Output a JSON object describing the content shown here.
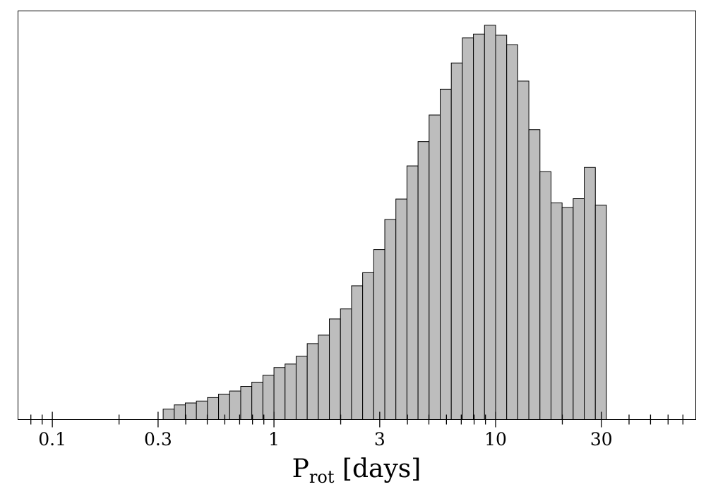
{
  "chart_data": {
    "type": "bar",
    "xscale": "log",
    "xlabel": {
      "main": "P",
      "subscript": "rot",
      "suffix": " [days]"
    },
    "ylabel": "",
    "title": "",
    "xlim": [
      0.07,
      80
    ],
    "ylim": [
      0,
      1.06
    ],
    "yticks_visible": false,
    "grid": false,
    "bar_fill": "#bdbdbd",
    "bar_edge": "#000000",
    "xtick_labels": [
      "0.1",
      "0.3",
      "1",
      "3",
      "10",
      "30"
    ],
    "bins": {
      "log10_start": -0.5,
      "log10_width": 0.05,
      "counts": [
        0.027,
        0.038,
        0.043,
        0.048,
        0.057,
        0.066,
        0.074,
        0.086,
        0.097,
        0.115,
        0.135,
        0.144,
        0.164,
        0.197,
        0.219,
        0.261,
        0.287,
        0.347,
        0.381,
        0.441,
        0.519,
        0.572,
        0.658,
        0.721,
        0.79,
        0.857,
        0.925,
        0.99,
        1.0,
        1.023,
        0.997,
        0.972,
        0.878,
        0.752,
        0.643,
        0.562,
        0.55,
        0.573,
        0.654,
        0.556
      ]
    }
  }
}
